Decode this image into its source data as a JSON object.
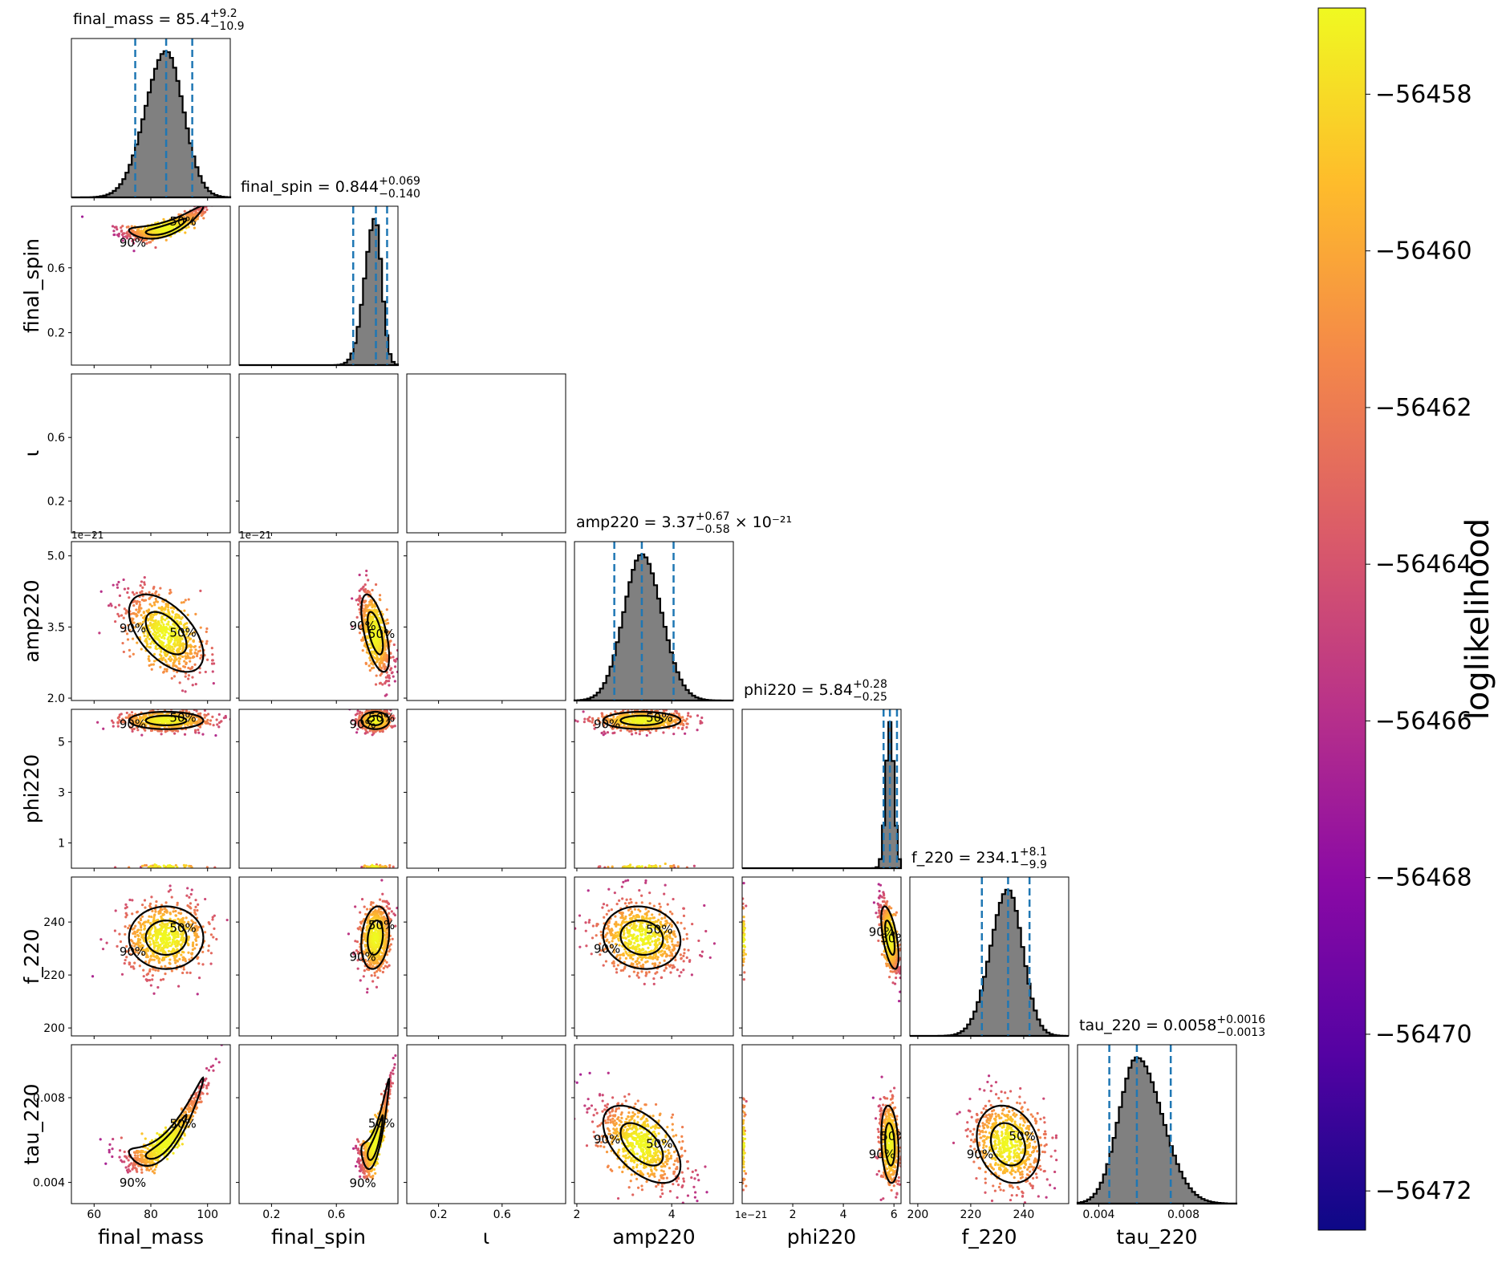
{
  "chart_data": {
    "type": "scatter",
    "subtype": "corner-plot",
    "parameters": [
      {
        "name": "final_mass",
        "label": "final_mass",
        "range": [
          52,
          108
        ],
        "ticks": [
          60,
          80,
          100
        ],
        "tick_labels": [
          "60",
          "80",
          "100"
        ],
        "title": {
          "prefix": "final_mass = 85.4",
          "plus": "+9.2",
          "minus": "−10.9",
          "suffix": ""
        },
        "median": 85.4,
        "lower": 74.5,
        "upper": 94.6,
        "mu": 85.4,
        "sigma": 6.1,
        "skew": -0.2
      },
      {
        "name": "final_spin",
        "label": "final_spin",
        "range": [
          0.0,
          0.98
        ],
        "ticks": [
          0.2,
          0.6
        ],
        "tick_labels": [
          "0.2",
          "0.6"
        ],
        "title": {
          "prefix": "final_spin = 0.844",
          "plus": "+0.069",
          "minus": "−0.140",
          "suffix": ""
        },
        "median": 0.844,
        "lower": 0.704,
        "upper": 0.913,
        "mu": 0.84,
        "sigma": 0.04,
        "skew": -0.6
      },
      {
        "name": "iota",
        "label": "ι",
        "range": [
          0,
          1
        ],
        "ticks": [
          0.2,
          0.6
        ],
        "tick_labels": [
          "0.2",
          "0.6"
        ],
        "title": null
      },
      {
        "name": "amp220",
        "label": "amp220",
        "range": [
          1.95,
          5.3
        ],
        "ticks": [
          2.0,
          3.5,
          5.0
        ],
        "tick_labels": [
          "2.0",
          "3.5",
          "5.0"
        ],
        "x_ticks": [
          2,
          4
        ],
        "x_tick_labels": [
          "2",
          "4"
        ],
        "offset": "1e−21",
        "title": {
          "prefix": "amp220 = 3.37",
          "plus": "+0.67",
          "minus": "−0.58",
          "suffix": " × 10⁻²¹"
        },
        "median": 3.37,
        "lower": 2.79,
        "upper": 4.04,
        "mu": 3.37,
        "sigma": 0.38,
        "skew": 0.1
      },
      {
        "name": "phi220",
        "label": "phi220",
        "range": [
          0,
          6.28
        ],
        "ticks": [
          1,
          3,
          5
        ],
        "tick_labels": [
          "1",
          "3",
          "5"
        ],
        "x_ticks": [
          2,
          4,
          6
        ],
        "x_tick_labels": [
          "2",
          "4",
          "6"
        ],
        "title": {
          "prefix": "phi220 = 5.84",
          "plus": "+0.28",
          "minus": "−0.25",
          "suffix": ""
        },
        "median": 5.84,
        "lower": 5.59,
        "upper": 6.12,
        "mu": 5.84,
        "sigma": 0.16,
        "skew": 0.0
      },
      {
        "name": "f_220",
        "label": "f_220",
        "range": [
          197,
          257
        ],
        "ticks": [
          200,
          220,
          240
        ],
        "tick_labels": [
          "200",
          "220",
          "240"
        ],
        "title": {
          "prefix": "f_220 = 234.1",
          "plus": "+8.1",
          "minus": "−9.9",
          "suffix": ""
        },
        "median": 234.1,
        "lower": 224.2,
        "upper": 242.2,
        "mu": 234.1,
        "sigma": 5.5,
        "skew": -0.2
      },
      {
        "name": "tau_220",
        "label": "tau_220",
        "range": [
          0.003,
          0.0105
        ],
        "ticks": [
          0.004,
          0.008
        ],
        "tick_labels": [
          "0.004",
          "0.008"
        ],
        "title": {
          "prefix": "tau_220 = 0.0058",
          "plus": "+0.0016",
          "minus": "−0.0013",
          "suffix": ""
        },
        "median": 0.0058,
        "lower": 0.0045,
        "upper": 0.0074,
        "mu": 0.0058,
        "sigma": 0.00085,
        "skew": 0.4
      }
    ],
    "correlations": [
      [
        0,
        1,
        0.85,
        "curve_up"
      ],
      [
        0,
        3,
        -0.55,
        "lin"
      ],
      [
        1,
        3,
        -0.6,
        "lin"
      ],
      [
        0,
        4,
        0,
        "lin"
      ],
      [
        1,
        4,
        0,
        "lin"
      ],
      [
        3,
        4,
        0,
        "lin"
      ],
      [
        0,
        5,
        0,
        "lin"
      ],
      [
        1,
        5,
        0.2,
        "lin"
      ],
      [
        3,
        5,
        -0.1,
        "lin"
      ],
      [
        4,
        5,
        -0.6,
        "lin"
      ],
      [
        0,
        6,
        0.95,
        "curve_up"
      ],
      [
        1,
        6,
        0.9,
        "curve_up"
      ],
      [
        3,
        6,
        -0.55,
        "lin"
      ],
      [
        4,
        6,
        -0.2,
        "lin"
      ],
      [
        5,
        6,
        -0.2,
        "lin"
      ]
    ],
    "contour_labels": [
      "50%",
      "90%"
    ],
    "colorbar": {
      "label": "loglikelihood",
      "min": -56472.5,
      "max": -56456.9,
      "ticks": [
        -56458,
        -56460,
        -56462,
        -56464,
        -56466,
        -56468,
        -56470,
        -56472
      ],
      "tick_labels": [
        "−56458",
        "−56460",
        "−56462",
        "−56464",
        "−56466",
        "−56468",
        "−56470",
        "−56472"
      ],
      "colormap": "plasma"
    },
    "colors": {
      "hist_fill": "#808080",
      "quantile_line": "#1f77b4",
      "contour": "#000000"
    }
  }
}
